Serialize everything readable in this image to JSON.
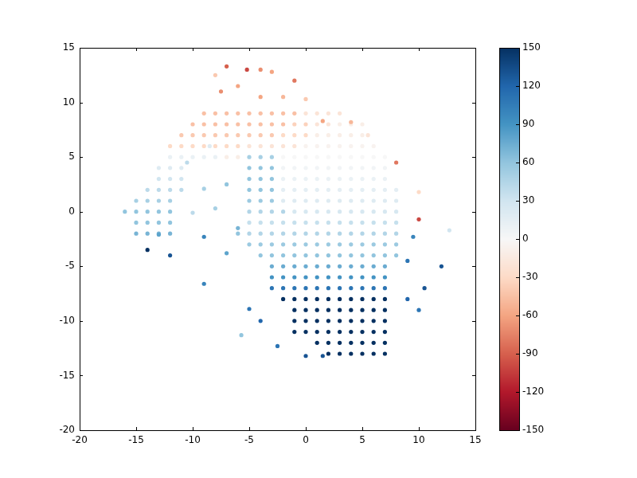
{
  "chart_data": {
    "type": "scatter",
    "xlim": [
      -20,
      15
    ],
    "xticks": [
      -20,
      -15,
      -10,
      -5,
      0,
      5,
      10,
      15
    ],
    "ylim": [
      -20,
      15
    ],
    "yticks": [
      -20,
      -15,
      -10,
      -5,
      0,
      5,
      10,
      15
    ],
    "grid": false,
    "colorbar": {
      "range": [
        -150,
        150
      ],
      "ticks": [
        -150,
        -120,
        -90,
        -60,
        -30,
        0,
        30,
        60,
        90,
        120,
        150
      ]
    },
    "points": [
      [
        -9,
        9,
        -45
      ],
      [
        -8,
        9,
        -45
      ],
      [
        -7,
        9,
        -45
      ],
      [
        -6,
        9,
        -45
      ],
      [
        -5,
        9,
        -45
      ],
      [
        -4,
        9,
        -45
      ],
      [
        -3,
        9,
        -45
      ],
      [
        -2,
        9,
        -45
      ],
      [
        -1,
        9,
        -45
      ],
      [
        0,
        9,
        -20
      ],
      [
        1,
        9,
        -20
      ],
      [
        2,
        9,
        -20
      ],
      [
        3,
        9,
        -20
      ],
      [
        -10,
        8,
        -45
      ],
      [
        -9,
        8,
        -45
      ],
      [
        -8,
        8,
        -45
      ],
      [
        -7,
        8,
        -45
      ],
      [
        -6,
        8,
        -45
      ],
      [
        -5,
        8,
        -45
      ],
      [
        -4,
        8,
        -45
      ],
      [
        -3,
        8,
        -45
      ],
      [
        -2,
        8,
        -45
      ],
      [
        -1,
        8,
        -35
      ],
      [
        0,
        8,
        -35
      ],
      [
        1,
        8,
        -20
      ],
      [
        2,
        8,
        -20
      ],
      [
        3,
        8,
        -10
      ],
      [
        4,
        8,
        -10
      ],
      [
        5,
        8,
        -10
      ],
      [
        -11,
        7,
        -40
      ],
      [
        -10,
        7,
        -40
      ],
      [
        -9,
        7,
        -40
      ],
      [
        -8,
        7,
        -40
      ],
      [
        -7,
        7,
        -40
      ],
      [
        -6,
        7,
        -40
      ],
      [
        -5,
        7,
        -40
      ],
      [
        -4,
        7,
        -40
      ],
      [
        -3,
        7,
        -40
      ],
      [
        -2,
        7,
        -30
      ],
      [
        -1,
        7,
        -30
      ],
      [
        0,
        7,
        -30
      ],
      [
        1,
        7,
        -10
      ],
      [
        2,
        7,
        -10
      ],
      [
        3,
        7,
        -10
      ],
      [
        4,
        7,
        -10
      ],
      [
        5,
        7,
        -10
      ],
      [
        -12,
        6,
        -30
      ],
      [
        -11,
        6,
        -30
      ],
      [
        -10,
        6,
        -30
      ],
      [
        -9,
        6,
        -30
      ],
      [
        -8,
        6,
        -30
      ],
      [
        -7,
        6,
        -30
      ],
      [
        -6,
        6,
        -30
      ],
      [
        -5,
        6,
        -20
      ],
      [
        -4,
        6,
        -20
      ],
      [
        -3,
        6,
        -20
      ],
      [
        -2,
        6,
        -20
      ],
      [
        -1,
        6,
        -20
      ],
      [
        0,
        6,
        -5
      ],
      [
        1,
        6,
        -5
      ],
      [
        2,
        6,
        -5
      ],
      [
        3,
        6,
        -5
      ],
      [
        4,
        6,
        -5
      ],
      [
        5,
        6,
        -5
      ],
      [
        6,
        6,
        -5
      ],
      [
        -12,
        5,
        10
      ],
      [
        -11,
        5,
        10
      ],
      [
        -10,
        5,
        10
      ],
      [
        -9,
        5,
        10
      ],
      [
        -8,
        5,
        10
      ],
      [
        -7,
        5,
        -10
      ],
      [
        -6,
        5,
        -10
      ],
      [
        -5,
        5,
        50
      ],
      [
        -4,
        5,
        50
      ],
      [
        -3,
        5,
        50
      ],
      [
        -2,
        5,
        0
      ],
      [
        -1,
        5,
        0
      ],
      [
        0,
        5,
        0
      ],
      [
        1,
        5,
        0
      ],
      [
        2,
        5,
        0
      ],
      [
        3,
        5,
        0
      ],
      [
        4,
        5,
        0
      ],
      [
        5,
        5,
        0
      ],
      [
        6,
        5,
        0
      ],
      [
        7,
        5,
        0
      ],
      [
        -13,
        4,
        20
      ],
      [
        -12,
        4,
        20
      ],
      [
        -11,
        4,
        20
      ],
      [
        -5,
        4,
        60
      ],
      [
        -4,
        4,
        60
      ],
      [
        -3,
        4,
        60
      ],
      [
        -2,
        4,
        5
      ],
      [
        -1,
        4,
        5
      ],
      [
        0,
        4,
        5
      ],
      [
        1,
        4,
        5
      ],
      [
        2,
        4,
        5
      ],
      [
        3,
        4,
        5
      ],
      [
        4,
        4,
        5
      ],
      [
        5,
        4,
        5
      ],
      [
        6,
        4,
        5
      ],
      [
        7,
        4,
        5
      ],
      [
        -13,
        3,
        30
      ],
      [
        -12,
        3,
        30
      ],
      [
        -11,
        3,
        30
      ],
      [
        -5,
        3,
        60
      ],
      [
        -4,
        3,
        60
      ],
      [
        -3,
        3,
        60
      ],
      [
        -2,
        3,
        10
      ],
      [
        -1,
        3,
        10
      ],
      [
        0,
        3,
        10
      ],
      [
        1,
        3,
        10
      ],
      [
        2,
        3,
        10
      ],
      [
        3,
        3,
        10
      ],
      [
        4,
        3,
        10
      ],
      [
        5,
        3,
        10
      ],
      [
        6,
        3,
        10
      ],
      [
        7,
        3,
        10
      ],
      [
        -14,
        2,
        40
      ],
      [
        -13,
        2,
        40
      ],
      [
        -12,
        2,
        40
      ],
      [
        -11,
        2,
        40
      ],
      [
        -5,
        2,
        60
      ],
      [
        -4,
        2,
        60
      ],
      [
        -3,
        2,
        60
      ],
      [
        -2,
        2,
        15
      ],
      [
        -1,
        2,
        15
      ],
      [
        0,
        2,
        15
      ],
      [
        1,
        2,
        15
      ],
      [
        2,
        2,
        15
      ],
      [
        3,
        2,
        15
      ],
      [
        4,
        2,
        15
      ],
      [
        5,
        2,
        15
      ],
      [
        6,
        2,
        15
      ],
      [
        7,
        2,
        15
      ],
      [
        8,
        2,
        15
      ],
      [
        -15,
        1,
        50
      ],
      [
        -14,
        1,
        50
      ],
      [
        -13,
        1,
        50
      ],
      [
        -12,
        1,
        50
      ],
      [
        -5,
        1,
        55
      ],
      [
        -4,
        1,
        55
      ],
      [
        -3,
        1,
        55
      ],
      [
        -2,
        1,
        20
      ],
      [
        -1,
        1,
        20
      ],
      [
        0,
        1,
        20
      ],
      [
        1,
        1,
        20
      ],
      [
        2,
        1,
        20
      ],
      [
        3,
        1,
        20
      ],
      [
        4,
        1,
        20
      ],
      [
        5,
        1,
        20
      ],
      [
        6,
        1,
        20
      ],
      [
        7,
        1,
        20
      ],
      [
        8,
        1,
        20
      ],
      [
        -16,
        0,
        60
      ],
      [
        -15,
        0,
        60
      ],
      [
        -14,
        0,
        60
      ],
      [
        -13,
        0,
        60
      ],
      [
        -12,
        0,
        60
      ],
      [
        -5,
        0,
        45
      ],
      [
        -4,
        0,
        45
      ],
      [
        -3,
        0,
        45
      ],
      [
        -2,
        0,
        45
      ],
      [
        -1,
        0,
        25
      ],
      [
        0,
        0,
        25
      ],
      [
        1,
        0,
        25
      ],
      [
        2,
        0,
        25
      ],
      [
        3,
        0,
        25
      ],
      [
        4,
        0,
        25
      ],
      [
        5,
        0,
        25
      ],
      [
        6,
        0,
        25
      ],
      [
        7,
        0,
        25
      ],
      [
        8,
        0,
        25
      ],
      [
        -15,
        -1,
        60
      ],
      [
        -14,
        -1,
        60
      ],
      [
        -13,
        -1,
        60
      ],
      [
        -12,
        -1,
        60
      ],
      [
        -5,
        -1,
        35
      ],
      [
        -4,
        -1,
        35
      ],
      [
        -3,
        -1,
        35
      ],
      [
        -2,
        -1,
        35
      ],
      [
        -1,
        -1,
        35
      ],
      [
        0,
        -1,
        35
      ],
      [
        1,
        -1,
        35
      ],
      [
        2,
        -1,
        35
      ],
      [
        3,
        -1,
        35
      ],
      [
        4,
        -1,
        35
      ],
      [
        5,
        -1,
        35
      ],
      [
        6,
        -1,
        35
      ],
      [
        7,
        -1,
        35
      ],
      [
        8,
        -1,
        35
      ],
      [
        -15,
        -2,
        70
      ],
      [
        -14,
        -2,
        70
      ],
      [
        -13,
        -2,
        70
      ],
      [
        -5,
        -2,
        45
      ],
      [
        -4,
        -2,
        45
      ],
      [
        -3,
        -2,
        45
      ],
      [
        -2,
        -2,
        45
      ],
      [
        -1,
        -2,
        45
      ],
      [
        0,
        -2,
        45
      ],
      [
        1,
        -2,
        45
      ],
      [
        2,
        -2,
        45
      ],
      [
        3,
        -2,
        45
      ],
      [
        4,
        -2,
        45
      ],
      [
        5,
        -2,
        45
      ],
      [
        6,
        -2,
        45
      ],
      [
        7,
        -2,
        45
      ],
      [
        8,
        -2,
        45
      ],
      [
        -5,
        -3,
        55
      ],
      [
        -4,
        -3,
        55
      ],
      [
        -3,
        -3,
        55
      ],
      [
        -2,
        -3,
        55
      ],
      [
        -1,
        -3,
        55
      ],
      [
        0,
        -3,
        55
      ],
      [
        1,
        -3,
        55
      ],
      [
        2,
        -3,
        55
      ],
      [
        3,
        -3,
        55
      ],
      [
        4,
        -3,
        55
      ],
      [
        5,
        -3,
        55
      ],
      [
        6,
        -3,
        55
      ],
      [
        7,
        -3,
        55
      ],
      [
        8,
        -3,
        55
      ],
      [
        -4,
        -4,
        60
      ],
      [
        -3,
        -4,
        60
      ],
      [
        -2,
        -4,
        60
      ],
      [
        -1,
        -4,
        60
      ],
      [
        0,
        -4,
        60
      ],
      [
        1,
        -4,
        60
      ],
      [
        2,
        -4,
        60
      ],
      [
        3,
        -4,
        60
      ],
      [
        4,
        -4,
        60
      ],
      [
        5,
        -4,
        60
      ],
      [
        6,
        -4,
        60
      ],
      [
        7,
        -4,
        60
      ],
      [
        8,
        -4,
        60
      ],
      [
        -3,
        -5,
        75
      ],
      [
        -2,
        -5,
        75
      ],
      [
        -1,
        -5,
        75
      ],
      [
        0,
        -5,
        75
      ],
      [
        1,
        -5,
        75
      ],
      [
        2,
        -5,
        75
      ],
      [
        3,
        -5,
        75
      ],
      [
        4,
        -5,
        75
      ],
      [
        5,
        -5,
        75
      ],
      [
        6,
        -5,
        75
      ],
      [
        7,
        -5,
        75
      ],
      [
        -3,
        -6,
        90
      ],
      [
        -2,
        -6,
        90
      ],
      [
        -1,
        -6,
        90
      ],
      [
        0,
        -6,
        90
      ],
      [
        1,
        -6,
        90
      ],
      [
        2,
        -6,
        90
      ],
      [
        3,
        -6,
        90
      ],
      [
        4,
        -6,
        90
      ],
      [
        5,
        -6,
        90
      ],
      [
        6,
        -6,
        90
      ],
      [
        7,
        -6,
        90
      ],
      [
        -3,
        -7,
        110
      ],
      [
        -2,
        -7,
        110
      ],
      [
        -1,
        -7,
        110
      ],
      [
        0,
        -7,
        110
      ],
      [
        1,
        -7,
        110
      ],
      [
        2,
        -7,
        110
      ],
      [
        3,
        -7,
        110
      ],
      [
        4,
        -7,
        110
      ],
      [
        5,
        -7,
        110
      ],
      [
        6,
        -7,
        110
      ],
      [
        7,
        -7,
        110
      ],
      [
        -2,
        -8,
        150
      ],
      [
        -1,
        -8,
        150
      ],
      [
        0,
        -8,
        150
      ],
      [
        1,
        -8,
        150
      ],
      [
        2,
        -8,
        150
      ],
      [
        3,
        -8,
        150
      ],
      [
        4,
        -8,
        150
      ],
      [
        5,
        -8,
        150
      ],
      [
        6,
        -8,
        150
      ],
      [
        7,
        -8,
        150
      ],
      [
        -1,
        -9,
        150
      ],
      [
        0,
        -9,
        150
      ],
      [
        1,
        -9,
        150
      ],
      [
        2,
        -9,
        150
      ],
      [
        3,
        -9,
        150
      ],
      [
        4,
        -9,
        150
      ],
      [
        5,
        -9,
        150
      ],
      [
        6,
        -9,
        150
      ],
      [
        7,
        -9,
        150
      ],
      [
        -1,
        -10,
        150
      ],
      [
        0,
        -10,
        150
      ],
      [
        1,
        -10,
        150
      ],
      [
        2,
        -10,
        150
      ],
      [
        3,
        -10,
        150
      ],
      [
        4,
        -10,
        150
      ],
      [
        5,
        -10,
        150
      ],
      [
        6,
        -10,
        150
      ],
      [
        7,
        -10,
        150
      ],
      [
        -1,
        -11,
        150
      ],
      [
        0,
        -11,
        150
      ],
      [
        1,
        -11,
        150
      ],
      [
        2,
        -11,
        150
      ],
      [
        3,
        -11,
        150
      ],
      [
        4,
        -11,
        150
      ],
      [
        5,
        -11,
        150
      ],
      [
        6,
        -11,
        150
      ],
      [
        7,
        -11,
        150
      ],
      [
        1,
        -12,
        150
      ],
      [
        2,
        -12,
        150
      ],
      [
        3,
        -12,
        150
      ],
      [
        4,
        -12,
        150
      ],
      [
        5,
        -12,
        150
      ],
      [
        6,
        -12,
        150
      ],
      [
        7,
        -12,
        150
      ],
      [
        2,
        -13,
        150
      ],
      [
        3,
        -13,
        150
      ],
      [
        4,
        -13,
        150
      ],
      [
        5,
        -13,
        150
      ],
      [
        6,
        -13,
        150
      ],
      [
        7,
        -13,
        150
      ],
      [
        -7,
        13.3,
        -90
      ],
      [
        -5.2,
        13,
        -100
      ],
      [
        -4,
        13,
        -70
      ],
      [
        -3,
        12.8,
        -60
      ],
      [
        -1,
        12,
        -80
      ],
      [
        -8,
        12.5,
        -40
      ],
      [
        -6,
        11.5,
        -60
      ],
      [
        -7.5,
        11,
        -70
      ],
      [
        -4,
        10.5,
        -60
      ],
      [
        -2,
        10.5,
        -50
      ],
      [
        0,
        10.3,
        -40
      ],
      [
        1.5,
        8.3,
        -60
      ],
      [
        4,
        8.2,
        -50
      ],
      [
        5.5,
        7,
        -20
      ],
      [
        8,
        4.5,
        -80
      ],
      [
        10,
        1.8,
        -30
      ],
      [
        10,
        -0.7,
        -100
      ],
      [
        12.7,
        -1.7,
        30
      ],
      [
        9.5,
        -2.3,
        100
      ],
      [
        9,
        -4.5,
        110
      ],
      [
        12,
        -5,
        130
      ],
      [
        9,
        -8,
        120
      ],
      [
        10,
        -9,
        110
      ],
      [
        10.5,
        -7,
        130
      ],
      [
        -14,
        -3.5,
        150
      ],
      [
        -12,
        -4,
        130
      ],
      [
        -9,
        -2.3,
        100
      ],
      [
        -9,
        -6.6,
        100
      ],
      [
        -7,
        -3.8,
        80
      ],
      [
        -5.7,
        -11.3,
        60
      ],
      [
        -5,
        -8.9,
        110
      ],
      [
        -4,
        -10,
        120
      ],
      [
        -2.5,
        -12.3,
        110
      ],
      [
        0,
        -13.2,
        130
      ],
      [
        1.5,
        -13.2,
        130
      ],
      [
        -10,
        -0.1,
        40
      ],
      [
        -8,
        0.3,
        50
      ],
      [
        -9,
        2.1,
        50
      ],
      [
        -7,
        2.5,
        60
      ],
      [
        -8.5,
        6,
        20
      ],
      [
        -10.5,
        4.5,
        40
      ],
      [
        -6,
        -1.5,
        70
      ],
      [
        -6,
        -2,
        60
      ],
      [
        -12,
        -2,
        70
      ],
      [
        -13,
        -2.1,
        80
      ]
    ]
  }
}
